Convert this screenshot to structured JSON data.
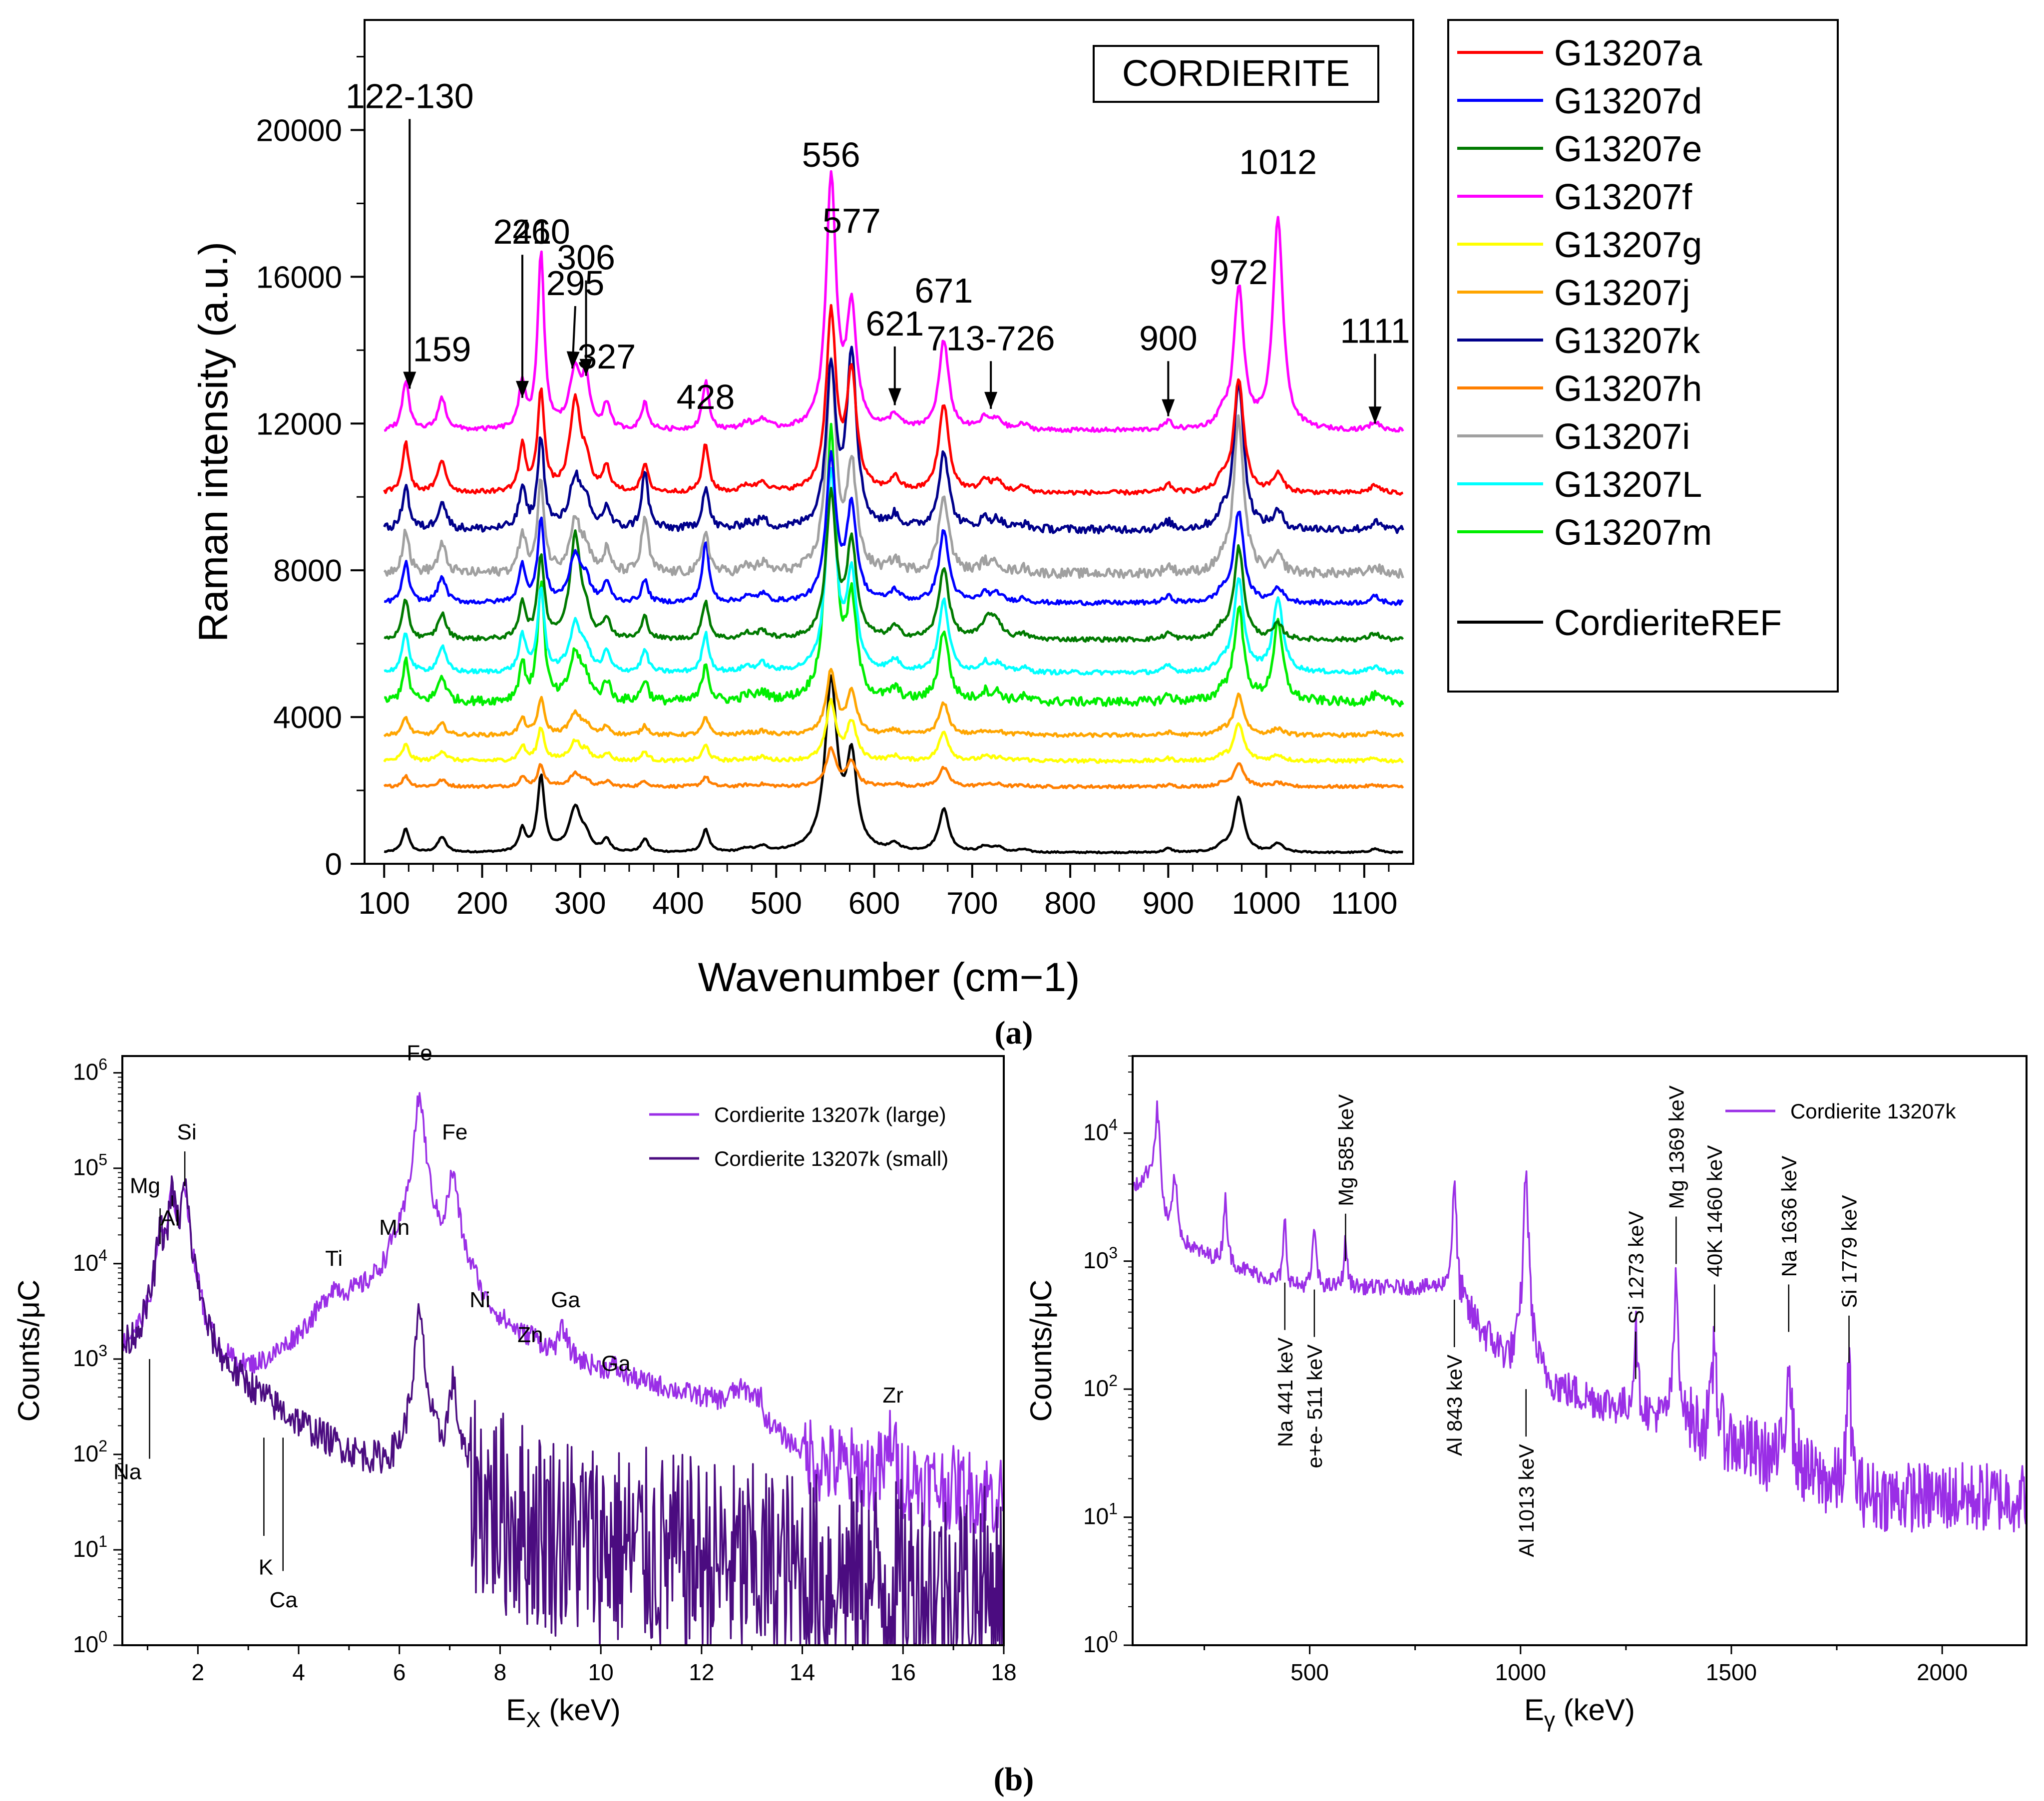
{
  "panel_a": {
    "caption": "(a)",
    "chart_data": {
      "type": "line",
      "title": "CORDIERITE",
      "xlabel": "Wavenumber (cm−1)",
      "ylabel": "Raman intensity (a.u.)",
      "xlim": [
        80,
        1150
      ],
      "ylim": [
        0,
        23000
      ],
      "xticks": [
        100,
        200,
        300,
        400,
        500,
        600,
        700,
        800,
        900,
        1000,
        1100
      ],
      "yticks": [
        0,
        4000,
        8000,
        12000,
        16000,
        20000
      ],
      "grid": false,
      "legend_position": "right-outside",
      "series": [
        {
          "name": "G13207a",
          "color": "#ff0000",
          "baseline": 10100,
          "scale": 0.62,
          "noise": 60
        },
        {
          "name": "G13207d",
          "color": "#0000ff",
          "baseline": 7100,
          "scale": 0.5,
          "noise": 60
        },
        {
          "name": "G13207e",
          "color": "#007a00",
          "baseline": 6100,
          "scale": 0.5,
          "noise": 60
        },
        {
          "name": "G13207f",
          "color": "#ff00ff",
          "baseline": 11800,
          "scale": 0.62,
          "noise": 60
        },
        {
          "name": "G13207g",
          "color": "#ffff00",
          "baseline": 2800,
          "scale": 0.2,
          "noise": 50
        },
        {
          "name": "G13207j",
          "color": "#ffa500",
          "baseline": 3500,
          "scale": 0.22,
          "noise": 50
        },
        {
          "name": "G13207k",
          "color": "#00008b",
          "baseline": 9100,
          "scale": 0.55,
          "noise": 110
        },
        {
          "name": "G13207h",
          "color": "#ff7f00",
          "baseline": 2100,
          "scale": 0.13,
          "noise": 40
        },
        {
          "name": "G13207i",
          "color": "#a0a0a0",
          "baseline": 7900,
          "scale": 0.55,
          "noise": 130
        },
        {
          "name": "G13207L",
          "color": "#00ffff",
          "baseline": 5200,
          "scale": 0.5,
          "noise": 60
        },
        {
          "name": "G13207m",
          "color": "#00ee00",
          "baseline": 4400,
          "scale": 0.5,
          "noise": 120
        },
        {
          "name": "CordieriteREF",
          "color": "#000000",
          "baseline": 300,
          "scale": 0.3,
          "noise": 20
        }
      ],
      "peaks_cm1": [
        122,
        159,
        241,
        260,
        295,
        306,
        327,
        366,
        428,
        556,
        577,
        621,
        671,
        720,
        900,
        972,
        1012,
        1111
      ],
      "annotations": [
        {
          "text": "122-130",
          "x": 126,
          "y": 20600,
          "arrow_to": [
            126,
            12950
          ]
        },
        {
          "text": "159",
          "x": 159,
          "y": 13700
        },
        {
          "text": "241",
          "x": 241,
          "y": 16900,
          "arrow_to": [
            241,
            12700
          ]
        },
        {
          "text": "260",
          "x": 260,
          "y": 16900
        },
        {
          "text": "295",
          "x": 295,
          "y": 15500,
          "arrow_to": [
            292,
            13500
          ]
        },
        {
          "text": "306",
          "x": 306,
          "y": 16200,
          "arrow_to": [
            306,
            13300
          ]
        },
        {
          "text": "327",
          "x": 327,
          "y": 13500
        },
        {
          "text": "428",
          "x": 428,
          "y": 12400
        },
        {
          "text": "556",
          "x": 556,
          "y": 19000
        },
        {
          "text": "577",
          "x": 577,
          "y": 17200
        },
        {
          "text": "621",
          "x": 621,
          "y": 14400,
          "arrow_to": [
            621,
            12500
          ]
        },
        {
          "text": "671",
          "x": 671,
          "y": 15300
        },
        {
          "text": "713-726",
          "x": 719,
          "y": 14000,
          "arrow_to": [
            719,
            12400
          ]
        },
        {
          "text": "900",
          "x": 900,
          "y": 14000,
          "arrow_to": [
            900,
            12200
          ]
        },
        {
          "text": "972",
          "x": 972,
          "y": 15800
        },
        {
          "text": "1012",
          "x": 1012,
          "y": 18800
        },
        {
          "text": "1111",
          "x": 1111,
          "y": 14200,
          "arrow_to": [
            1111,
            12000
          ]
        }
      ]
    }
  },
  "panel_b": {
    "caption": "(b)",
    "left": {
      "chart_data": {
        "type": "line",
        "xlabel_main": "E",
        "xlabel_sub": "X",
        "xlabel_unit": " (keV)",
        "ylabel": "Counts/μC",
        "xlim": [
          0.5,
          18
        ],
        "xticks": [
          2,
          4,
          6,
          8,
          10,
          12,
          14,
          16,
          18
        ],
        "yscale": "log",
        "ylim": [
          1,
          1500000
        ],
        "ytick_exponents": [
          0,
          1,
          2,
          3,
          4,
          5,
          6
        ],
        "legend_position": "top-right",
        "series": [
          {
            "name": "Cordierite 13207k (large)",
            "color": "#9a2ee6"
          },
          {
            "name": "Cordierite 13207k (small)",
            "color": "#4b0c80"
          }
        ],
        "peaks_keV": [
          {
            "label": "Na",
            "e": 1.04
          },
          {
            "label": "Mg",
            "e": 1.25,
            "counts": 18000
          },
          {
            "label": "Al",
            "e": 1.49,
            "counts": 55000
          },
          {
            "label": "Si",
            "e": 1.74,
            "counts": 65000
          },
          {
            "label": "K",
            "e": 3.31
          },
          {
            "label": "Ca",
            "e": 3.69
          },
          {
            "label": "Ti",
            "e": 4.51,
            "counts": 4200
          },
          {
            "label": "Mn",
            "e": 5.9,
            "counts": 6000
          },
          {
            "label": "Fe",
            "e": 6.4,
            "counts": 550000
          },
          {
            "label": "Fe",
            "e": 7.06,
            "counts": 80000
          },
          {
            "label": "Ni",
            "e": 7.48,
            "counts": 1500
          },
          {
            "label": "Zn",
            "e": 8.64,
            "counts": 650
          },
          {
            "label": "Ga",
            "e": 9.25,
            "counts": 1350
          },
          {
            "label": "Ga",
            "e": 10.26,
            "counts": 350
          },
          {
            "label": "Zr",
            "e": 15.77,
            "counts": 150
          }
        ],
        "labels": [
          {
            "text": "Na",
            "x": 0.6,
            "y": 55
          },
          {
            "text": "Mg",
            "x": 0.95,
            "y": 55000
          },
          {
            "text": "Al",
            "x": 1.45,
            "y": 25000
          },
          {
            "text": "Si",
            "x": 1.78,
            "y": 200000
          },
          {
            "text": "K",
            "x": 3.35,
            "y": 5.5
          },
          {
            "text": "Ca",
            "x": 3.7,
            "y": 2.5
          },
          {
            "text": "Ti",
            "x": 4.7,
            "y": 9500
          },
          {
            "text": "Mn",
            "x": 5.9,
            "y": 20000
          },
          {
            "text": "Fe",
            "x": 6.4,
            "y": 1350000
          },
          {
            "text": "Fe",
            "x": 7.1,
            "y": 200000
          },
          {
            "text": "Ni",
            "x": 7.6,
            "y": 3500
          },
          {
            "text": "Zn",
            "x": 8.6,
            "y": 1500
          },
          {
            "text": "Ga",
            "x": 9.3,
            "y": 3500
          },
          {
            "text": "Ga",
            "x": 10.3,
            "y": 750
          },
          {
            "text": "Zr",
            "x": 15.8,
            "y": 350
          }
        ]
      }
    },
    "right": {
      "chart_data": {
        "type": "line",
        "xlabel_main": "E",
        "xlabel_sub": "γ",
        "xlabel_unit": " (keV)",
        "ylabel": "Counts/μC",
        "xlim": [
          80,
          2200
        ],
        "xticks": [
          500,
          1000,
          1500,
          2000
        ],
        "yscale": "log",
        "ylim": [
          1,
          40000
        ],
        "ytick_exponents": [
          0,
          1,
          2,
          3,
          4
        ],
        "legend_position": "top-right",
        "series": [
          {
            "name": "Cordierite 13207k",
            "color": "#9a2ee6"
          }
        ],
        "peaks_keV": [
          {
            "e": 140,
            "counts": 12000
          },
          {
            "e": 180,
            "counts": 3200
          },
          {
            "e": 300,
            "counts": 2400
          },
          {
            "e": 441,
            "counts": 1400
          },
          {
            "e": 511,
            "counts": 1300
          },
          {
            "e": 585,
            "counts": 850
          },
          {
            "e": 843,
            "counts": 3600
          },
          {
            "e": 1013,
            "counts": 5500
          },
          {
            "e": 1273,
            "counts": 250
          },
          {
            "e": 1369,
            "counts": 650
          },
          {
            "e": 1460,
            "counts": 230
          },
          {
            "e": 1636,
            "counts": 210
          },
          {
            "e": 1779,
            "counts": 125
          }
        ],
        "labels": [
          {
            "text": "Na 441 keV",
            "x": 441,
            "side": "below",
            "y_top": 680
          },
          {
            "text": "e+e- 511 keV",
            "x": 511,
            "side": "below",
            "y_top": 600
          },
          {
            "text": "Mg 585 keV",
            "x": 585,
            "side": "above",
            "y_bottom": 1000
          },
          {
            "text": "Al 843 keV",
            "x": 843,
            "side": "below",
            "y_top": 500
          },
          {
            "text": "Al 1013 keV",
            "x": 1013,
            "side": "below",
            "y_top": 100
          },
          {
            "text": "Si 1273 keV",
            "x": 1273,
            "side": "above",
            "y_bottom": 120
          },
          {
            "text": "Mg 1369 keV",
            "x": 1369,
            "side": "above",
            "y_bottom": 950
          },
          {
            "text": "40K 1460 keV",
            "x": 1460,
            "side": "above",
            "y_bottom": 280
          },
          {
            "text": "Na 1636 keV",
            "x": 1636,
            "side": "above",
            "y_bottom": 280
          },
          {
            "text": "Si 1779 keV",
            "x": 1779,
            "side": "above",
            "y_bottom": 160
          }
        ]
      }
    }
  }
}
